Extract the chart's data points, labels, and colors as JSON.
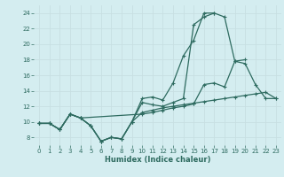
{
  "xlabel": "Humidex (Indice chaleur)",
  "bg_color": "#d4edf0",
  "grid_color": "#c8dfe2",
  "line_color": "#2e6b60",
  "xlim": [
    -0.5,
    23.5
  ],
  "ylim": [
    7.0,
    25.0
  ],
  "xticks": [
    0,
    1,
    2,
    3,
    4,
    5,
    6,
    7,
    8,
    9,
    10,
    11,
    12,
    13,
    14,
    15,
    16,
    17,
    18,
    19,
    20,
    21,
    22,
    23
  ],
  "yticks": [
    8,
    10,
    12,
    14,
    16,
    18,
    20,
    22,
    24
  ],
  "line1_x": [
    0,
    1,
    2,
    3,
    4,
    5,
    6,
    7,
    8,
    9,
    10,
    11,
    12,
    13,
    14,
    15,
    16,
    17,
    18,
    19,
    20
  ],
  "line1_y": [
    9.8,
    9.8,
    9.0,
    11.0,
    10.5,
    9.5,
    7.5,
    8.0,
    7.8,
    10.0,
    13.0,
    13.2,
    12.8,
    15.0,
    18.5,
    20.5,
    24.0,
    24.0,
    23.5,
    17.8,
    18.0
  ],
  "line2_x": [
    0,
    1,
    2,
    3,
    4,
    5,
    6,
    7,
    8,
    9,
    10,
    11,
    12,
    13,
    14,
    15,
    16,
    17
  ],
  "line2_y": [
    9.8,
    9.8,
    9.0,
    11.0,
    10.5,
    9.5,
    7.5,
    8.0,
    7.8,
    10.0,
    12.5,
    12.2,
    12.0,
    12.5,
    13.0,
    22.5,
    23.5,
    24.0
  ],
  "line3_x": [
    0,
    1,
    2,
    3,
    4,
    5,
    6,
    7,
    8,
    9,
    10,
    11,
    12,
    13,
    14,
    15,
    16,
    17,
    18,
    19,
    20,
    21,
    22,
    23
  ],
  "line3_y": [
    9.8,
    9.8,
    9.0,
    11.0,
    10.5,
    9.5,
    7.5,
    8.0,
    7.8,
    10.0,
    11.2,
    11.5,
    11.8,
    12.0,
    12.2,
    12.4,
    12.6,
    12.8,
    13.0,
    13.2,
    13.4,
    13.6,
    13.8,
    13.0
  ],
  "line4_x": [
    0,
    1,
    2,
    3,
    4,
    10,
    11,
    12,
    13,
    14,
    15,
    16,
    17,
    18,
    19,
    20,
    21,
    22,
    23
  ],
  "line4_y": [
    9.8,
    9.8,
    9.0,
    11.0,
    10.5,
    11.0,
    11.2,
    11.5,
    11.8,
    12.0,
    12.3,
    14.8,
    15.0,
    14.5,
    17.8,
    17.5,
    14.8,
    13.0,
    13.0
  ]
}
